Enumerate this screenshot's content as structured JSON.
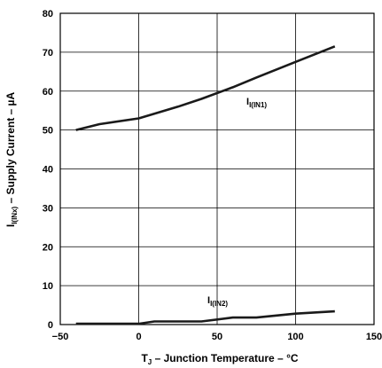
{
  "chart_data": {
    "type": "line",
    "xlabel": {
      "main": "T",
      "sub": "J",
      "rest": " – Junction Temperature – °C"
    },
    "ylabel": {
      "main": "I",
      "sub": "I(INx)",
      "rest": " – Supply Current – µA"
    },
    "xlim": [
      -50,
      150
    ],
    "ylim": [
      0,
      80
    ],
    "xticks": [
      -50,
      0,
      50,
      100,
      150
    ],
    "yticks": [
      0,
      10,
      20,
      30,
      40,
      50,
      60,
      70,
      80
    ],
    "grid": true,
    "series": [
      {
        "name": "I(IN1)",
        "label": {
          "main": "I",
          "sub": "I(IN1)"
        },
        "x": [
          -40,
          -25,
          0,
          25,
          40,
          60,
          75,
          100,
          125
        ],
        "y": [
          50,
          51.5,
          53,
          56,
          58,
          61,
          63.5,
          67.5,
          71.5
        ]
      },
      {
        "name": "I(IN2)",
        "label": {
          "main": "I",
          "sub": "I(IN2)"
        },
        "x": [
          -40,
          -25,
          0,
          10,
          25,
          40,
          60,
          75,
          100,
          125
        ],
        "y": [
          0.2,
          0.2,
          0.2,
          0.8,
          0.8,
          0.8,
          1.8,
          1.8,
          2.8,
          3.4
        ]
      }
    ],
    "line_color": "#1a1a1a",
    "grid_color": "#000000"
  }
}
